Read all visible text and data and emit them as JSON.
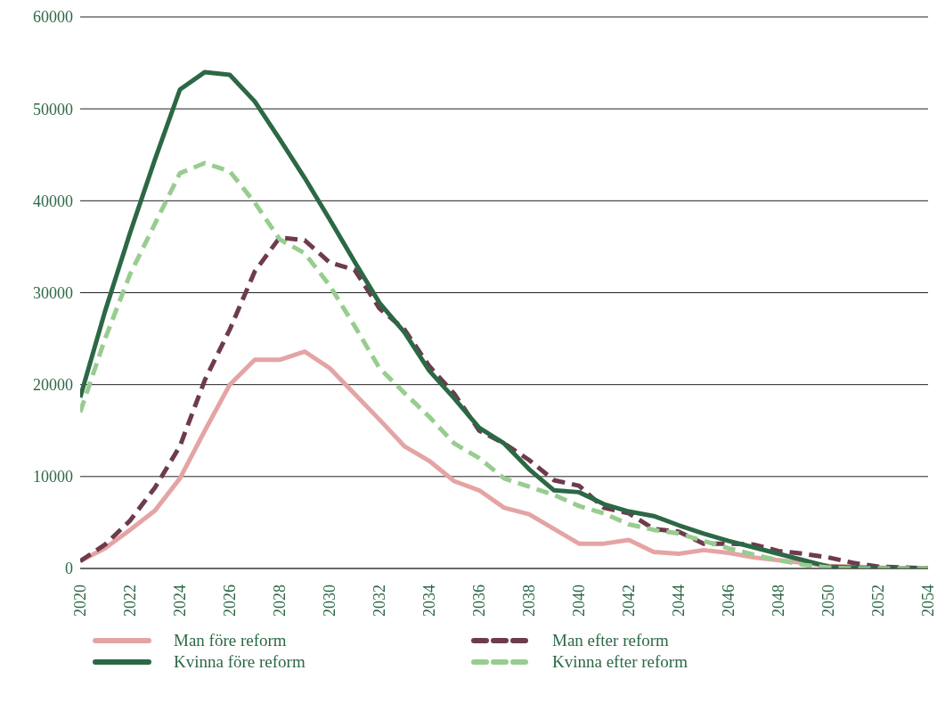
{
  "chart_data": {
    "type": "line",
    "x": [
      2020,
      2021,
      2022,
      2023,
      2024,
      2025,
      2026,
      2027,
      2028,
      2029,
      2030,
      2031,
      2032,
      2033,
      2034,
      2035,
      2036,
      2037,
      2038,
      2039,
      2040,
      2041,
      2042,
      2043,
      2044,
      2045,
      2046,
      2047,
      2048,
      2049,
      2050,
      2051,
      2052,
      2053,
      2054
    ],
    "series": [
      {
        "name": "Man före reform",
        "color": "#e5a4a4",
        "line_style": "solid",
        "values": [
          800,
          2200,
          4200,
          6300,
          9800,
          15000,
          20000,
          22700,
          22700,
          23600,
          21800,
          19000,
          16200,
          13300,
          11700,
          9500,
          8500,
          6600,
          5900,
          4300,
          2700,
          2700,
          3100,
          1800,
          1600,
          2000,
          1700,
          1200,
          900,
          600,
          300,
          200,
          100,
          0,
          0
        ]
      },
      {
        "name": "Man efter reform",
        "color": "#6e3b4e",
        "line_style": "dashed",
        "values": [
          800,
          2600,
          5200,
          8800,
          13300,
          20500,
          26000,
          32300,
          36000,
          35700,
          33300,
          32500,
          28300,
          26000,
          22000,
          19000,
          15000,
          13600,
          11800,
          9600,
          9000,
          6600,
          6000,
          4300,
          4000,
          2700,
          2700,
          2600,
          1900,
          1600,
          1200,
          600,
          200,
          100,
          0
        ]
      },
      {
        "name": "Kvinna före reform",
        "color": "#2c6846",
        "line_style": "solid",
        "values": [
          18600,
          28000,
          36500,
          44500,
          52100,
          54000,
          53700,
          50800,
          46700,
          42500,
          38000,
          33400,
          28900,
          25700,
          21500,
          18500,
          15300,
          13600,
          10800,
          8500,
          8300,
          7000,
          6200,
          5700,
          4700,
          3800,
          3000,
          2300,
          1600,
          900,
          200,
          100,
          0,
          0,
          0
        ]
      },
      {
        "name": "Kvinna efter reform",
        "color": "#98cc90",
        "line_style": "dashed",
        "values": [
          17000,
          25000,
          32000,
          37500,
          43000,
          44100,
          43200,
          39800,
          35800,
          34300,
          30800,
          26400,
          21800,
          19100,
          16500,
          13600,
          12000,
          9800,
          8900,
          8000,
          6800,
          6000,
          4800,
          4200,
          3800,
          3000,
          2200,
          1500,
          900,
          400,
          100,
          0,
          0,
          0,
          0
        ]
      }
    ],
    "xlim": [
      2020,
      2054
    ],
    "xticks": [
      2020,
      2022,
      2024,
      2026,
      2028,
      2030,
      2032,
      2034,
      2036,
      2038,
      2040,
      2042,
      2044,
      2046,
      2048,
      2050,
      2052,
      2054
    ],
    "ylim": [
      0,
      60000
    ],
    "yticks": [
      0,
      10000,
      20000,
      30000,
      40000,
      50000,
      60000
    ],
    "grid": "y",
    "legend": "bottom",
    "marker": "none"
  }
}
